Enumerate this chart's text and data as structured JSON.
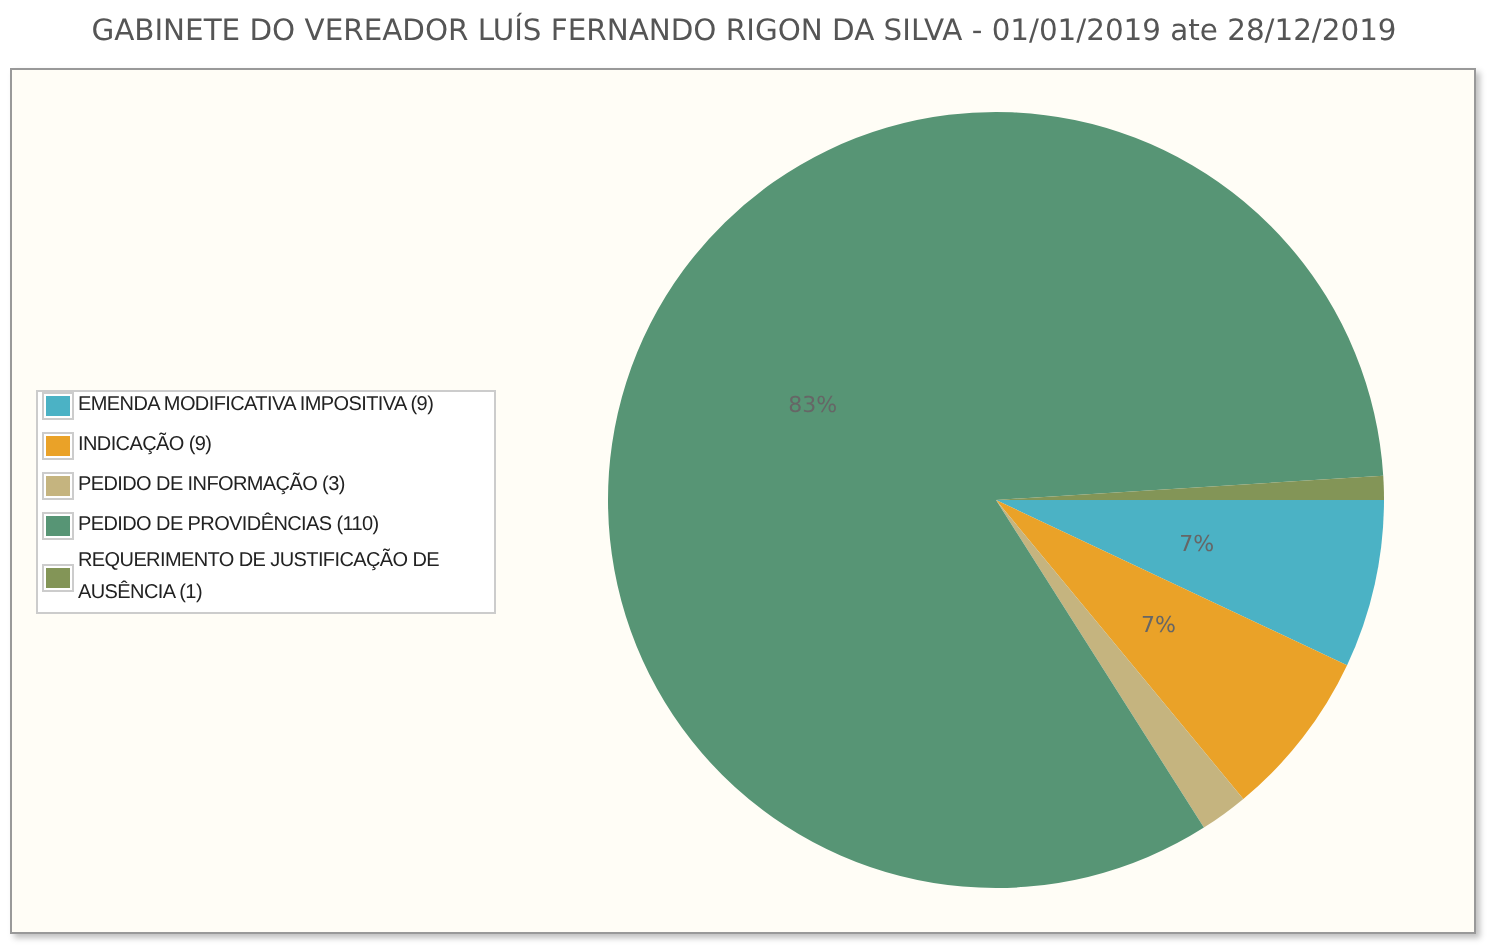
{
  "chart_data": {
    "type": "pie",
    "title": "GABINETE DO VEREADOR LUÍS FERNANDO RIGON DA SILVA - 01/01/2019 ate 28/12/2019",
    "categories": [
      "EMENDA MODIFICATIVA IMPOSITIVA (9)",
      "INDICAÇÃO (9)",
      "PEDIDO DE INFORMAÇÃO (3)",
      "PEDIDO DE PROVIDÊNCIAS (110)",
      "REQUERIMENTO DE JUSTIFICAÇÃO DE AUSÊNCIA (1)"
    ],
    "values": [
      7,
      7,
      2,
      83,
      1
    ],
    "colors": [
      "#4bb2c5",
      "#eaa228",
      "#c5b47f",
      "#579575",
      "#839557"
    ],
    "value_labels": [
      "7%",
      "7%",
      null,
      "83%",
      null
    ],
    "legend": "left"
  }
}
